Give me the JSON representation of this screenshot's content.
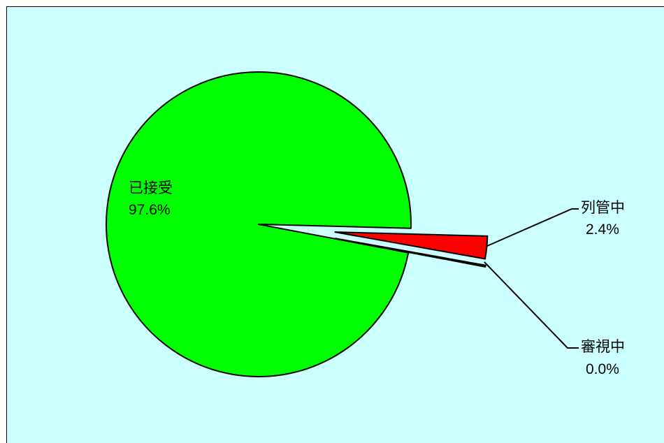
{
  "chart_data": {
    "type": "pie",
    "colors": {
      "background": "#ccffff",
      "outline": "#000000"
    },
    "slices": [
      {
        "label": "已接受",
        "value": 97.6,
        "percent_text": "97.6%",
        "color": "#00ff00",
        "label_placement": "inside",
        "exploded": false
      },
      {
        "label": "列管中",
        "value": 2.4,
        "percent_text": "2.4%",
        "color": "#ff0000",
        "label_placement": "callout",
        "exploded": true
      },
      {
        "label": "審視中",
        "value": 0.0,
        "percent_text": "0.0%",
        "color": "#00ff00",
        "label_placement": "callout",
        "exploded": true
      }
    ]
  }
}
